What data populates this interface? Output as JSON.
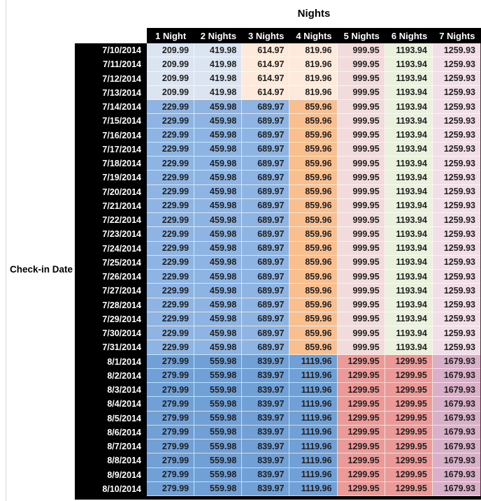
{
  "title": "Nights",
  "side_label": "Check-in Date",
  "colors": {
    "header_bg": "#000000",
    "header_text": "#ffffff",
    "date_col_bg": "#000000",
    "date_text": "#ffffff",
    "value_text": "#1f1f1f",
    "left_gridline": "#d9d9d9",
    "band_low_blue": "#dbe5f1",
    "band_low_tan": "#fdeada",
    "band_mid_blue": "#8db4e2",
    "band_mid_orange": "#fabf8f",
    "rose_light": "#f2dcdb",
    "green_light": "#eaf1dd",
    "pink_light": "#f2dee7",
    "band_high_blue": "#71a0d7",
    "band_high_red": "#ec9a98",
    "band_high_mauve": "#d8b0c8"
  },
  "chart_data": {
    "type": "table",
    "title": "Nights",
    "row_axis_label": "Check-in Date",
    "columns": [
      "1 Night",
      "2 Nights",
      "3 Nights",
      "4 Nights",
      "5 Nights",
      "6 Nights",
      "7 Nights"
    ],
    "bands": {
      "low": {
        "cell_colors": [
          "#dbe5f1",
          "#dbe5f1",
          "#fdeada",
          "#fdeada",
          "#f2dcdb",
          "#eaf1dd",
          "#f2dee7"
        ]
      },
      "mid": {
        "cell_colors": [
          "#8db4e2",
          "#8db4e2",
          "#8db4e2",
          "#fabf8f",
          "#f2dcdb",
          "#eaf1dd",
          "#f2dee7"
        ]
      },
      "high": {
        "cell_colors": [
          "#71a0d7",
          "#71a0d7",
          "#71a0d7",
          "#71a0d7",
          "#ec9a98",
          "#ec9a98",
          "#d8b0c8"
        ]
      }
    },
    "rows": [
      {
        "date": "7/10/2014",
        "band": "low",
        "values": [
          209.99,
          419.98,
          614.97,
          819.96,
          999.95,
          1193.94,
          1259.93
        ]
      },
      {
        "date": "7/11/2014",
        "band": "low",
        "values": [
          209.99,
          419.98,
          614.97,
          819.96,
          999.95,
          1193.94,
          1259.93
        ]
      },
      {
        "date": "7/12/2014",
        "band": "low",
        "values": [
          209.99,
          419.98,
          614.97,
          819.96,
          999.95,
          1193.94,
          1259.93
        ]
      },
      {
        "date": "7/13/2014",
        "band": "low",
        "values": [
          209.99,
          419.98,
          614.97,
          819.96,
          999.95,
          1193.94,
          1259.93
        ]
      },
      {
        "date": "7/14/2014",
        "band": "mid",
        "values": [
          229.99,
          459.98,
          689.97,
          859.96,
          999.95,
          1193.94,
          1259.93
        ]
      },
      {
        "date": "7/15/2014",
        "band": "mid",
        "values": [
          229.99,
          459.98,
          689.97,
          859.96,
          999.95,
          1193.94,
          1259.93
        ]
      },
      {
        "date": "7/16/2014",
        "band": "mid",
        "values": [
          229.99,
          459.98,
          689.97,
          859.96,
          999.95,
          1193.94,
          1259.93
        ]
      },
      {
        "date": "7/17/2014",
        "band": "mid",
        "values": [
          229.99,
          459.98,
          689.97,
          859.96,
          999.95,
          1193.94,
          1259.93
        ]
      },
      {
        "date": "7/18/2014",
        "band": "mid",
        "values": [
          229.99,
          459.98,
          689.97,
          859.96,
          999.95,
          1193.94,
          1259.93
        ]
      },
      {
        "date": "7/19/2014",
        "band": "mid",
        "values": [
          229.99,
          459.98,
          689.97,
          859.96,
          999.95,
          1193.94,
          1259.93
        ]
      },
      {
        "date": "7/20/2014",
        "band": "mid",
        "values": [
          229.99,
          459.98,
          689.97,
          859.96,
          999.95,
          1193.94,
          1259.93
        ]
      },
      {
        "date": "7/21/2014",
        "band": "mid",
        "values": [
          229.99,
          459.98,
          689.97,
          859.96,
          999.95,
          1193.94,
          1259.93
        ]
      },
      {
        "date": "7/22/2014",
        "band": "mid",
        "values": [
          229.99,
          459.98,
          689.97,
          859.96,
          999.95,
          1193.94,
          1259.93
        ]
      },
      {
        "date": "7/23/2014",
        "band": "mid",
        "values": [
          229.99,
          459.98,
          689.97,
          859.96,
          999.95,
          1193.94,
          1259.93
        ]
      },
      {
        "date": "7/24/2014",
        "band": "mid",
        "values": [
          229.99,
          459.98,
          689.97,
          859.96,
          999.95,
          1193.94,
          1259.93
        ]
      },
      {
        "date": "7/25/2014",
        "band": "mid",
        "values": [
          229.99,
          459.98,
          689.97,
          859.96,
          999.95,
          1193.94,
          1259.93
        ]
      },
      {
        "date": "7/26/2014",
        "band": "mid",
        "values": [
          229.99,
          459.98,
          689.97,
          859.96,
          999.95,
          1193.94,
          1259.93
        ]
      },
      {
        "date": "7/27/2014",
        "band": "mid",
        "values": [
          229.99,
          459.98,
          689.97,
          859.96,
          999.95,
          1193.94,
          1259.93
        ]
      },
      {
        "date": "7/28/2014",
        "band": "mid",
        "values": [
          229.99,
          459.98,
          689.97,
          859.96,
          999.95,
          1193.94,
          1259.93
        ]
      },
      {
        "date": "7/29/2014",
        "band": "mid",
        "values": [
          229.99,
          459.98,
          689.97,
          859.96,
          999.95,
          1193.94,
          1259.93
        ]
      },
      {
        "date": "7/30/2014",
        "band": "mid",
        "values": [
          229.99,
          459.98,
          689.97,
          859.96,
          999.95,
          1193.94,
          1259.93
        ]
      },
      {
        "date": "7/31/2014",
        "band": "mid",
        "values": [
          229.99,
          459.98,
          689.97,
          859.96,
          999.95,
          1193.94,
          1259.93
        ]
      },
      {
        "date": "8/1/2014",
        "band": "high",
        "values": [
          279.99,
          559.98,
          839.97,
          1119.96,
          1299.95,
          1299.95,
          1679.93
        ]
      },
      {
        "date": "8/2/2014",
        "band": "high",
        "values": [
          279.99,
          559.98,
          839.97,
          1119.96,
          1299.95,
          1299.95,
          1679.93
        ]
      },
      {
        "date": "8/3/2014",
        "band": "high",
        "values": [
          279.99,
          559.98,
          839.97,
          1119.96,
          1299.95,
          1299.95,
          1679.93
        ]
      },
      {
        "date": "8/4/2014",
        "band": "high",
        "values": [
          279.99,
          559.98,
          839.97,
          1119.96,
          1299.95,
          1299.95,
          1679.93
        ]
      },
      {
        "date": "8/5/2014",
        "band": "high",
        "values": [
          279.99,
          559.98,
          839.97,
          1119.96,
          1299.95,
          1299.95,
          1679.93
        ]
      },
      {
        "date": "8/6/2014",
        "band": "high",
        "values": [
          279.99,
          559.98,
          839.97,
          1119.96,
          1299.95,
          1299.95,
          1679.93
        ]
      },
      {
        "date": "8/7/2014",
        "band": "high",
        "values": [
          279.99,
          559.98,
          839.97,
          1119.96,
          1299.95,
          1299.95,
          1679.93
        ]
      },
      {
        "date": "8/8/2014",
        "band": "high",
        "values": [
          279.99,
          559.98,
          839.97,
          1119.96,
          1299.95,
          1299.95,
          1679.93
        ]
      },
      {
        "date": "8/9/2014",
        "band": "high",
        "values": [
          279.99,
          559.98,
          839.97,
          1119.96,
          1299.95,
          1299.95,
          1679.93
        ]
      },
      {
        "date": "8/10/2014",
        "band": "high",
        "values": [
          279.99,
          559.98,
          839.97,
          1119.96,
          1299.95,
          1299.95,
          1679.93
        ]
      }
    ]
  }
}
